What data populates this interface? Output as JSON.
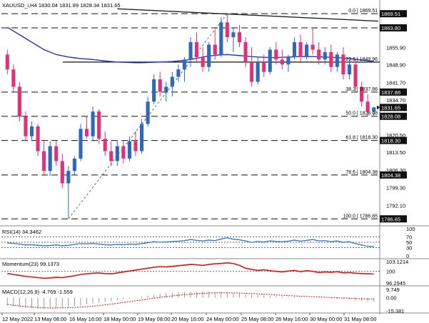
{
  "colors": {
    "bull": "#2f6ab8",
    "bear": "#e0317c",
    "ma": "#2432c8",
    "dark_line": "#222222",
    "rsi": "#2477d8",
    "momentum": "#dd1111",
    "macd_signal": "#dd1111",
    "fib_line": "#111111",
    "badge_bg": "#111111",
    "badge_text": "#ffffff"
  },
  "chart_data": [
    {
      "type": "candlestick",
      "title": "XAUUSD_i,H4  1830.04 1831.89 1828.34 1831.65",
      "ylim": [
        1785,
        1871
      ],
      "y_ticks": [
        "1855.90",
        "1848.90",
        "1841.70",
        "1834.70",
        "1827.50",
        "1820.50",
        "1813.50",
        "1806.30",
        "1799.30",
        "1792.10"
      ],
      "price_badges": [
        "1869.51",
        "1863.80",
        "1837.86",
        "1831.65",
        "1828.08",
        "1818.30",
        "1804.38",
        "1786.65"
      ],
      "fib_levels": [
        {
          "label": "0.0",
          "value": 1869.51
        },
        {
          "label": "23.6",
          "value": 1849.96
        },
        {
          "label": "38.2",
          "value": 1837.86
        },
        {
          "label": "50.0",
          "value": 1828.08
        },
        {
          "label": "61.8",
          "value": 1818.3
        },
        {
          "label": "78.6",
          "value": 1804.38
        },
        {
          "label": "100.0",
          "value": 1786.65
        }
      ],
      "fib_text": [
        "0.0 | 1869.51",
        "23.6 | 1849.96",
        "38.2 | 1837.86",
        "50.0 | 1828.08",
        "61.8 | 1818.30",
        "78.6 | 1804.38",
        "100.0 | 1786.65"
      ],
      "dashed_levels": [
        1869.51,
        1863.8,
        1837.86,
        1828.08,
        1818.3,
        1804.38,
        1786.65
      ],
      "solid_levels": [
        1849.96
      ],
      "x_labels": [
        "12 May 2022",
        "13 May 08:00",
        "16 May 16:00",
        "18 May 00:00",
        "19 May 08:00",
        "20 May 16:00",
        "24 May 00:00",
        "25 May 08:00",
        "26 May 16:00",
        "30 May 00:00",
        "31 May 08:00"
      ],
      "candles": [
        [
          1853,
          1855,
          1845,
          1847
        ],
        [
          1847,
          1849,
          1838,
          1840
        ],
        [
          1840,
          1842,
          1826,
          1828
        ],
        [
          1828,
          1830,
          1818,
          1820
        ],
        [
          1820,
          1826,
          1818,
          1824
        ],
        [
          1824,
          1825,
          1812,
          1814
        ],
        [
          1814,
          1818,
          1804,
          1806
        ],
        [
          1806,
          1818,
          1804,
          1816
        ],
        [
          1816,
          1818,
          1808,
          1810
        ],
        [
          1810,
          1813,
          1799,
          1801
        ],
        [
          1801,
          1808,
          1787,
          1806
        ],
        [
          1806,
          1812,
          1804,
          1811
        ],
        [
          1811,
          1825,
          1810,
          1823
        ],
        [
          1823,
          1828,
          1819,
          1820
        ],
        [
          1820,
          1832,
          1818,
          1830
        ],
        [
          1830,
          1831,
          1817,
          1819
        ],
        [
          1819,
          1822,
          1812,
          1814
        ],
        [
          1814,
          1818,
          1808,
          1810
        ],
        [
          1810,
          1818,
          1808,
          1816
        ],
        [
          1816,
          1818,
          1809,
          1811
        ],
        [
          1811,
          1820,
          1810,
          1818
        ],
        [
          1818,
          1822,
          1812,
          1814
        ],
        [
          1814,
          1827,
          1813,
          1825
        ],
        [
          1825,
          1836,
          1824,
          1834
        ],
        [
          1834,
          1845,
          1833,
          1843
        ],
        [
          1843,
          1846,
          1836,
          1838
        ],
        [
          1838,
          1842,
          1834,
          1840
        ],
        [
          1840,
          1846,
          1836,
          1844
        ],
        [
          1844,
          1849,
          1842,
          1847
        ],
        [
          1847,
          1852,
          1842,
          1851
        ],
        [
          1851,
          1860,
          1848,
          1858
        ],
        [
          1858,
          1862,
          1850,
          1852
        ],
        [
          1852,
          1856,
          1846,
          1848
        ],
        [
          1848,
          1858,
          1846,
          1857
        ],
        [
          1857,
          1863,
          1851,
          1853
        ],
        [
          1853,
          1868,
          1852,
          1866
        ],
        [
          1866,
          1869.5,
          1858,
          1860
        ],
        [
          1860,
          1864,
          1854,
          1862
        ],
        [
          1862,
          1865,
          1856,
          1858
        ],
        [
          1858,
          1860,
          1848,
          1850
        ],
        [
          1850,
          1856,
          1840,
          1842
        ],
        [
          1842,
          1852,
          1841,
          1850
        ],
        [
          1850,
          1853,
          1844,
          1846
        ],
        [
          1846,
          1856,
          1845,
          1855
        ],
        [
          1855,
          1858,
          1849,
          1851
        ],
        [
          1851,
          1855,
          1847,
          1849
        ],
        [
          1849,
          1853,
          1846,
          1852
        ],
        [
          1852,
          1860,
          1851,
          1858
        ],
        [
          1858,
          1861,
          1850,
          1852
        ],
        [
          1852,
          1858,
          1851,
          1857
        ],
        [
          1857,
          1864,
          1853,
          1855
        ],
        [
          1855,
          1858,
          1849,
          1851
        ],
        [
          1851,
          1856,
          1849,
          1854
        ],
        [
          1854,
          1857,
          1846,
          1848
        ],
        [
          1848,
          1854,
          1846,
          1853
        ],
        [
          1853,
          1856,
          1843,
          1845
        ],
        [
          1845,
          1851,
          1843,
          1849
        ],
        [
          1849,
          1851,
          1838,
          1840
        ],
        [
          1840,
          1842,
          1832,
          1834
        ],
        [
          1834,
          1837,
          1828,
          1830
        ],
        [
          1830.04,
          1831.89,
          1828.34,
          1831.65
        ]
      ],
      "ma_series": [
        1864,
        1862.5,
        1861,
        1859.5,
        1858,
        1856.5,
        1855,
        1854,
        1853,
        1852.5,
        1852,
        1851.7,
        1851.4,
        1851.2,
        1851,
        1850.7,
        1850.4,
        1850.2,
        1850,
        1849.9,
        1849.8,
        1849.7,
        1849.7,
        1849.8,
        1849.9,
        1850,
        1850.1,
        1850.2,
        1850.4,
        1850.7,
        1851,
        1851.5,
        1852,
        1852.4,
        1852.7,
        1852.9,
        1853,
        1852.8,
        1852.6,
        1852.4,
        1852.2,
        1852,
        1851.9,
        1851.8,
        1851.8,
        1851.9,
        1852,
        1852.1,
        1852.2,
        1852.2,
        1852.2,
        1852.1,
        1852,
        1851.9,
        1851.8,
        1851.6,
        1851.4,
        1851.1,
        1850.8,
        1850.5,
        1850.2
      ]
    },
    {
      "type": "line",
      "title": "RSI(14) 34.3462",
      "ylim": [
        0,
        100
      ],
      "y_ticks": [
        "100",
        "70",
        "50",
        "30",
        "0"
      ],
      "levels": [
        70,
        50,
        30
      ],
      "values": [
        47,
        46,
        43,
        40,
        41,
        39,
        37,
        38,
        40,
        37,
        39,
        42,
        45,
        44,
        46,
        43,
        41,
        40,
        42,
        41,
        43,
        42,
        45,
        48,
        52,
        50,
        51,
        53,
        54,
        56,
        60,
        57,
        55,
        58,
        56,
        62,
        66,
        61,
        59,
        55,
        49,
        53,
        51,
        55,
        53,
        52,
        54,
        58,
        54,
        57,
        60,
        55,
        56,
        52,
        55,
        50,
        52,
        45,
        40,
        35,
        34.3
      ]
    },
    {
      "type": "line",
      "title": "Momentum(23) 99.1373",
      "ylim": [
        96.2945,
        103.1214
      ],
      "y_ticks": [
        "103.1214",
        "100",
        "96.2945"
      ],
      "levels": [
        100
      ],
      "values": [
        99.3,
        99.0,
        98.7,
        98.4,
        98.2,
        98.0,
        97.8,
        97.9,
        98.1,
        98.0,
        98.3,
        98.6,
        99.0,
        99.2,
        99.4,
        99.5,
        99.3,
        99.2,
        99.5,
        99.8,
        100.1,
        100.4,
        100.7,
        101.0,
        101.3,
        101.5,
        101.4,
        101.6,
        101.8,
        102.0,
        102.2,
        102.1,
        101.9,
        102.2,
        102.4,
        102.5,
        102.7,
        102.5,
        101.9,
        101.0,
        100.6,
        100.3,
        100.5,
        100.2,
        100.0,
        99.8,
        100.1,
        100.3,
        99.9,
        100.2,
        100.0,
        99.6,
        99.8,
        99.7,
        99.9,
        99.5,
        99.6,
        99.4,
        99.3,
        99.2,
        99.14
      ]
    },
    {
      "type": "bar",
      "title": "MACD(12,26,9) -4.769 -1.559",
      "ylim": [
        -15.381,
        9.749
      ],
      "y_ticks": [
        "9.749",
        "0.00",
        "-15.381"
      ],
      "values": [
        -9,
        -10,
        -11,
        -12,
        -12.5,
        -13,
        -13,
        -12.5,
        -12,
        -11.5,
        -11,
        -10,
        -9,
        -8,
        -7,
        -6,
        -5,
        -4,
        -3,
        -2,
        -1,
        0.5,
        1.5,
        2.5,
        3.5,
        4.5,
        5.5,
        6,
        6.5,
        7,
        7.2,
        7.4,
        7.3,
        7,
        6.8,
        6.5,
        6,
        5.5,
        5,
        4,
        3.5,
        3,
        2.5,
        2,
        1.8,
        1.5,
        1.2,
        1,
        0.5,
        0.2,
        0,
        -0.3,
        -0.6,
        -1,
        -1.4,
        -1.8,
        -2.3,
        -3,
        -3.6,
        -4.2,
        -4.769
      ],
      "signal": [
        -8,
        -8.8,
        -9.6,
        -10.3,
        -10.9,
        -11.4,
        -11.8,
        -12,
        -12,
        -11.9,
        -11.7,
        -11.4,
        -11,
        -10.5,
        -9.9,
        -9.2,
        -8.4,
        -7.5,
        -6.6,
        -5.6,
        -4.6,
        -3.6,
        -2.6,
        -1.6,
        -0.6,
        0.4,
        1.3,
        2.1,
        2.9,
        3.6,
        4.2,
        4.8,
        5.2,
        5.5,
        5.7,
        5.8,
        5.8,
        5.7,
        5.5,
        5.2,
        4.9,
        4.5,
        4.1,
        3.7,
        3.3,
        2.9,
        2.5,
        2.2,
        1.8,
        1.5,
        1.2,
        0.9,
        0.6,
        0.3,
        0,
        -0.3,
        -0.6,
        -0.9,
        -1.2,
        -1.4,
        -1.559
      ]
    }
  ]
}
